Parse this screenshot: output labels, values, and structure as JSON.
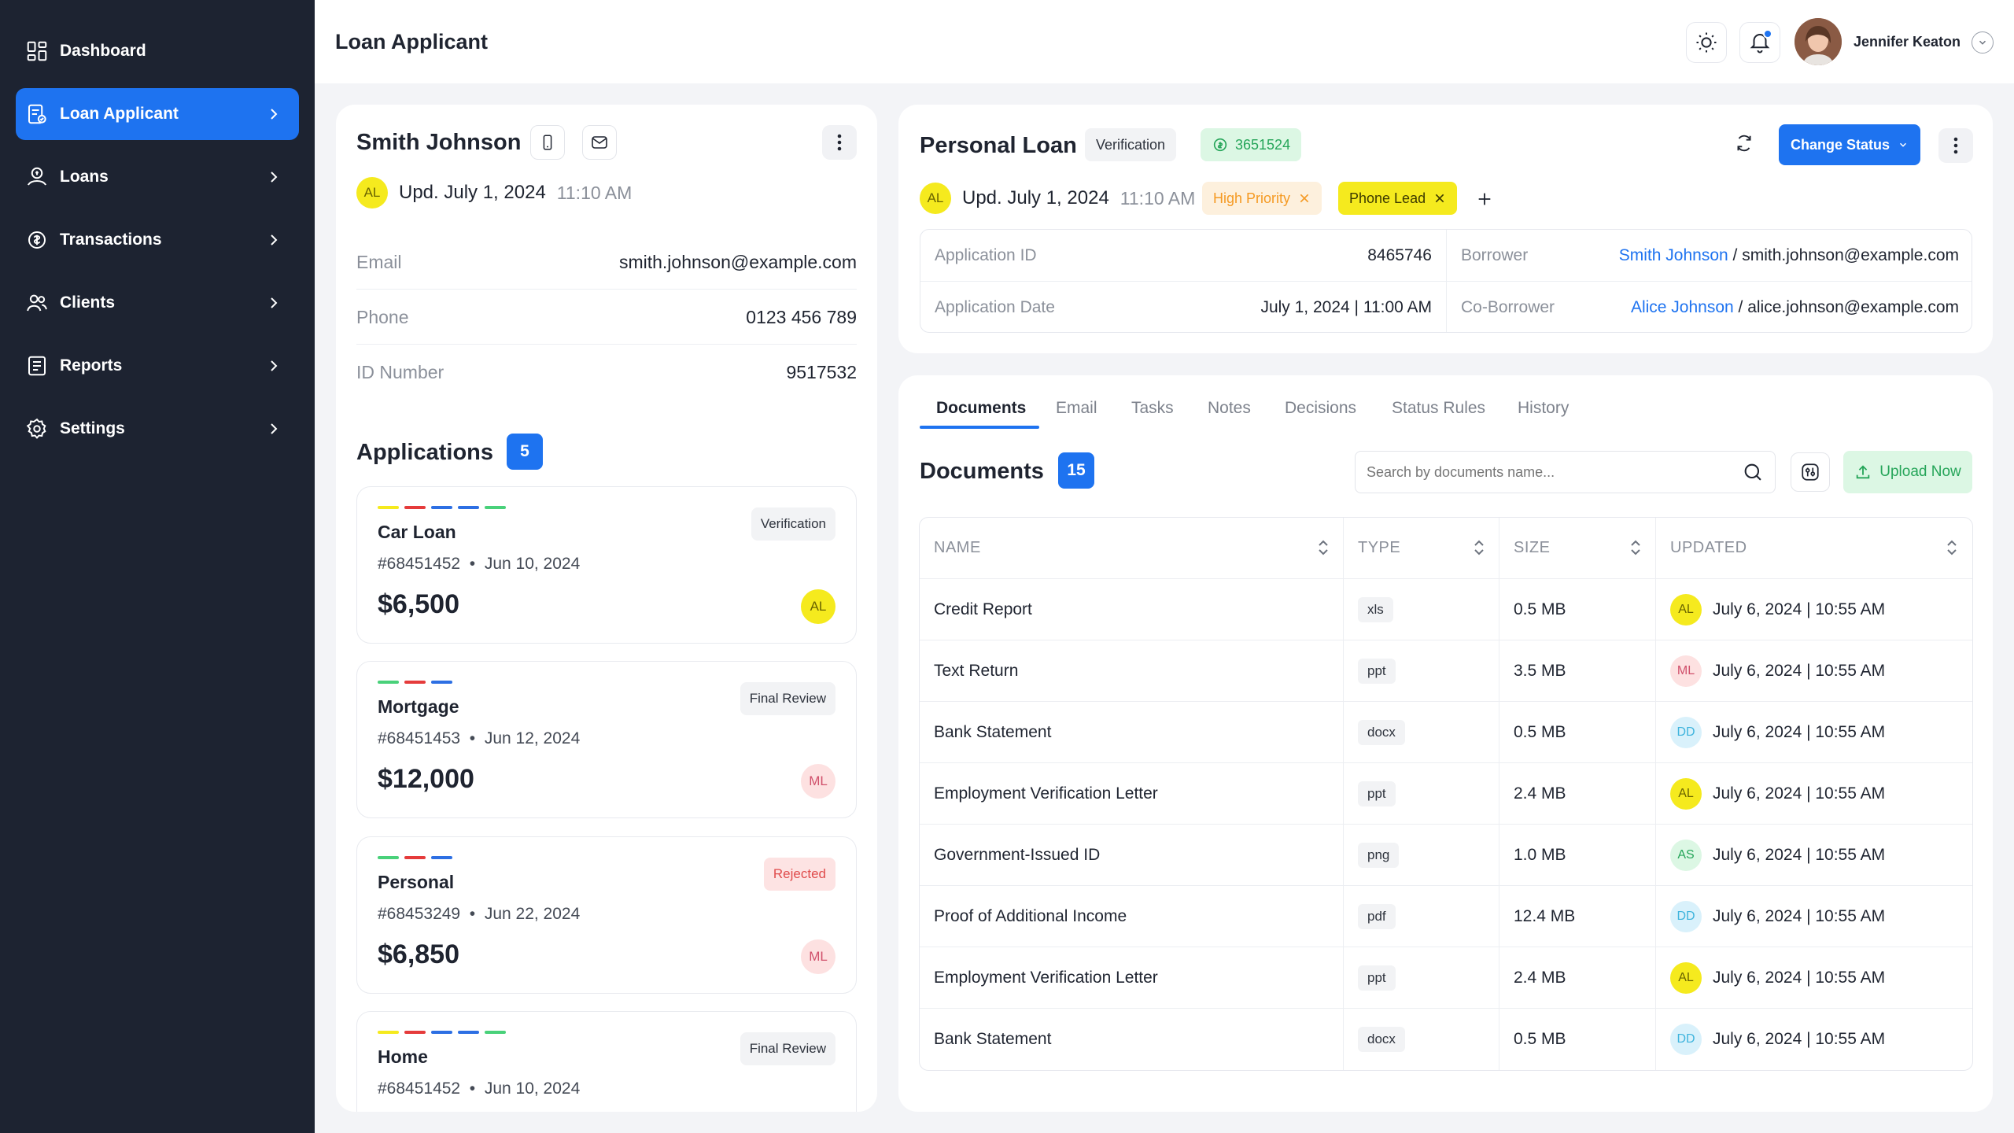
{
  "sidebar": {
    "items": [
      {
        "label": "Dashboard",
        "icon": "dashboard-icon",
        "active": false
      },
      {
        "label": "Loan Applicant",
        "icon": "loan-applicant-icon",
        "active": true
      },
      {
        "label": "Loans",
        "icon": "loans-icon",
        "active": false
      },
      {
        "label": "Transactions",
        "icon": "transactions-icon",
        "active": false
      },
      {
        "label": "Clients",
        "icon": "clients-icon",
        "active": false
      },
      {
        "label": "Reports",
        "icon": "reports-icon",
        "active": false
      },
      {
        "label": "Settings",
        "icon": "settings-icon",
        "active": false
      }
    ]
  },
  "header": {
    "title": "Loan Applicant",
    "user_name": "Jennifer Keaton"
  },
  "applicant": {
    "name": "Smith Johnson",
    "updated_initials": "AL",
    "updated_label": "Upd. July 1, 2024",
    "updated_time": "11:10 AM",
    "fields": [
      {
        "label": "Email",
        "value": "smith.johnson@example.com"
      },
      {
        "label": "Phone",
        "value": "0123 456 789"
      },
      {
        "label": "ID Number",
        "value": "9517532"
      }
    ]
  },
  "applications": {
    "title": "Applications",
    "count": "5",
    "items": [
      {
        "title": "Car Loan",
        "id": "#68451452",
        "date": "Jun 10, 2024",
        "amount": "$6,500",
        "status": "Verification",
        "initials": "AL"
      },
      {
        "title": "Mortgage",
        "id": "#68451453",
        "date": "Jun 12, 2024",
        "amount": "$12,000",
        "status": "Final Review",
        "initials": "ML"
      },
      {
        "title": "Personal",
        "id": "#68453249",
        "date": "Jun 22, 2024",
        "amount": "$6,850",
        "status": "Rejected",
        "initials": "ML"
      },
      {
        "title": "Home",
        "id": "#68451452",
        "date": "Jun 10, 2024",
        "amount": "",
        "status": "Final Review",
        "initials": ""
      }
    ],
    "separator": "•"
  },
  "loan": {
    "title": "Personal Loan",
    "status_badge": "Verification",
    "number_badge": "3651524",
    "updated_initials": "AL",
    "updated_label": "Upd. July 1, 2024",
    "updated_time": "11:10 AM",
    "tags": [
      "High Priority",
      "Phone Lead"
    ],
    "change_status_label": "Change Status",
    "details": {
      "application_id_label": "Application ID",
      "application_id": "8465746",
      "application_date_label": "Application Date",
      "application_date": "July 1, 2024 | 11:00 AM",
      "borrower_label": "Borrower",
      "borrower_name": "Smith Johnson",
      "borrower_email": " / smith.johnson@example.com",
      "coborrower_label": "Co-Borrower",
      "coborrower_name": "Alice Johnson",
      "coborrower_email": " / alice.johnson@example.com"
    }
  },
  "documents": {
    "tabs": [
      "Documents",
      "Email",
      "Tasks",
      "Notes",
      "Decisions",
      "Status Rules",
      "History"
    ],
    "title": "Documents",
    "count": "15",
    "search_placeholder": "Search by documents name...",
    "upload_label": "Upload Now",
    "columns": [
      "NAME",
      "TYPE",
      "SIZE",
      "UPDATED"
    ],
    "rows": [
      {
        "name": "Credit Report",
        "type": "xls",
        "size": "0.5 MB",
        "initials": "AL",
        "updated": "July 6, 2024 | 10:55 AM"
      },
      {
        "name": "Text Return",
        "type": "ppt",
        "size": "3.5 MB",
        "initials": "ML",
        "updated": "July 6, 2024 | 10:55 AM"
      },
      {
        "name": "Bank Statement",
        "type": "docx",
        "size": "0.5 MB",
        "initials": "DD",
        "updated": "July 6, 2024 | 10:55 AM"
      },
      {
        "name": "Employment Verification Letter",
        "type": "ppt",
        "size": "2.4 MB",
        "initials": "AL",
        "updated": "July 6, 2024 | 10:55 AM"
      },
      {
        "name": "Government-Issued ID",
        "type": "png",
        "size": "1.0 MB",
        "initials": "AS",
        "updated": "July 6, 2024 | 10:55 AM"
      },
      {
        "name": "Proof of Additional Income",
        "type": "pdf",
        "size": "12.4 MB",
        "initials": "DD",
        "updated": "July 6, 2024 | 10:55 AM"
      },
      {
        "name": "Employment Verification Letter",
        "type": "ppt",
        "size": "2.4 MB",
        "initials": "AL",
        "updated": "July 6, 2024 | 10:55 AM"
      },
      {
        "name": "Bank Statement",
        "type": "docx",
        "size": "0.5 MB",
        "initials": "DD",
        "updated": "July 6, 2024 | 10:55 AM"
      }
    ]
  },
  "colors": {
    "sidebar_bg": "#1d2331",
    "accent": "#1e73f0",
    "success": "#25a559",
    "danger": "#e04c4c",
    "warning": "#f59a23",
    "highlight": "#f5ea1e"
  }
}
